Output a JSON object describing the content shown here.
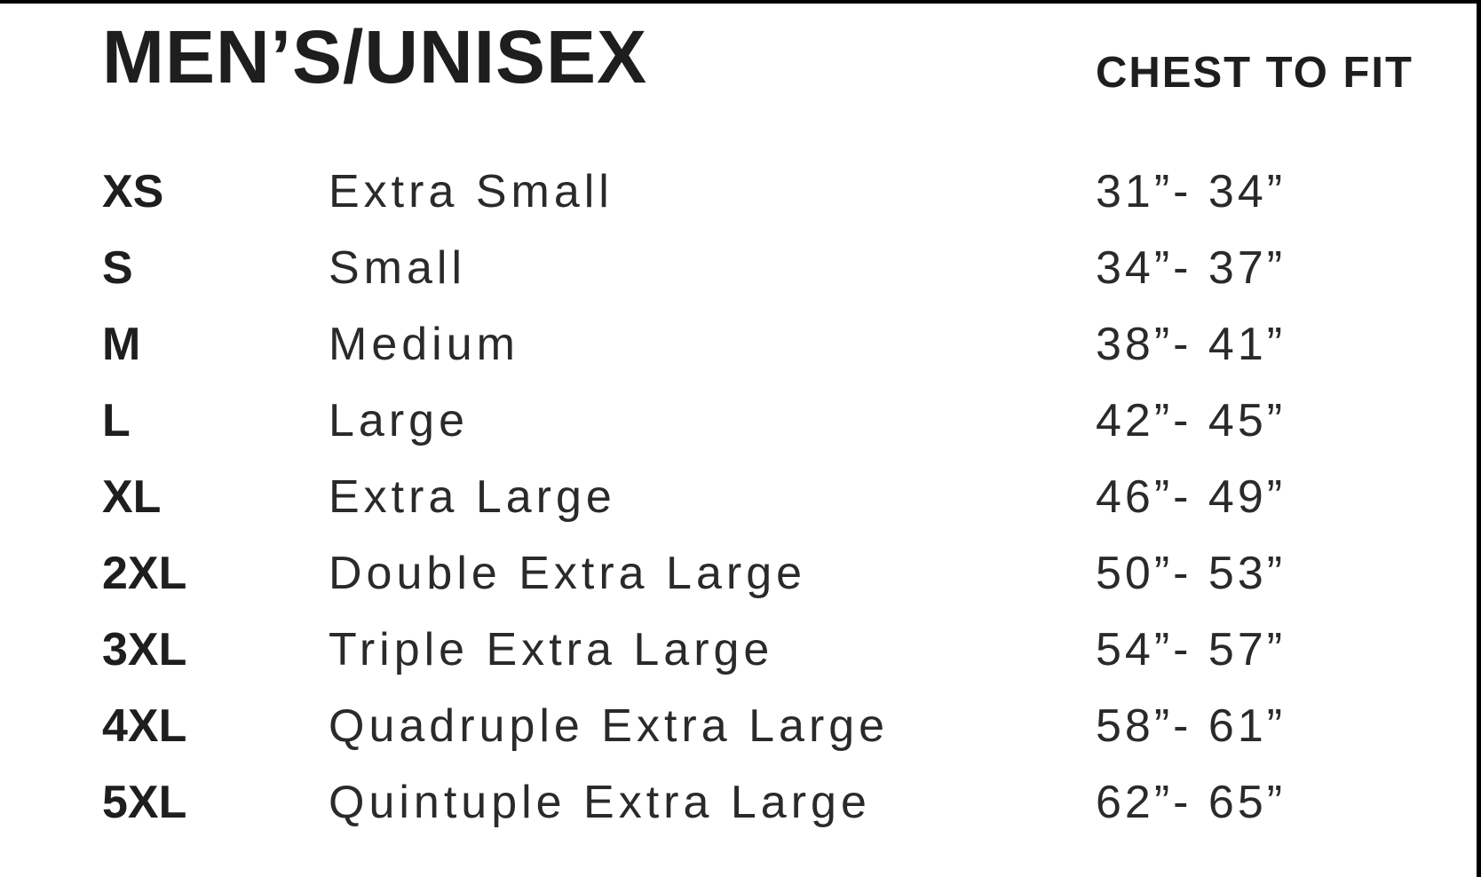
{
  "title": "MEN’S/UNISEX",
  "column_header": "CHEST TO FIT",
  "rows": [
    {
      "size": "XS",
      "name": "Extra Small",
      "chest": "31”- 34”"
    },
    {
      "size": "S",
      "name": "Small",
      "chest": "34”- 37”"
    },
    {
      "size": "M",
      "name": "Medium",
      "chest": "38”- 41”"
    },
    {
      "size": "L",
      "name": "Large",
      "chest": "42”- 45”"
    },
    {
      "size": "XL",
      "name": "Extra Large",
      "chest": "46”- 49”"
    },
    {
      "size": "2XL",
      "name": "Double Extra Large",
      "chest": "50”- 53”"
    },
    {
      "size": "3XL",
      "name": "Triple Extra Large",
      "chest": "54”- 57”"
    },
    {
      "size": "4XL",
      "name": "Quadruple Extra Large",
      "chest": "58”- 61”"
    },
    {
      "size": "5XL",
      "name": "Quintuple Extra Large",
      "chest": "62”- 65”"
    }
  ]
}
